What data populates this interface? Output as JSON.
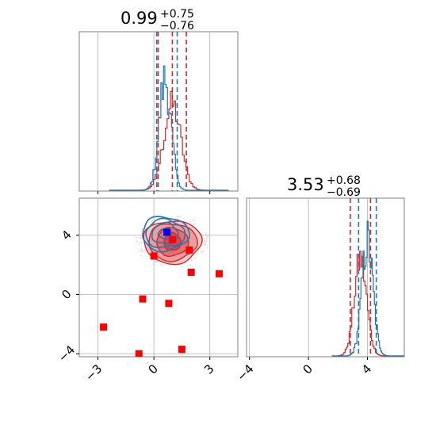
{
  "chart_data": {
    "type": "corner",
    "colors": {
      "blue": "#1f77b4",
      "red": "#d62728",
      "marker_red": "#ff0000",
      "marker_blue": "#0000ff",
      "grid": "#b0b0b0"
    },
    "grid": true,
    "param1": {
      "title_value": "0.99",
      "title_plus": "+0.75",
      "title_minus": "−0.76",
      "range": [
        -4,
        4.5
      ],
      "tick_values": [
        -3,
        0,
        3
      ],
      "tick_labels": [
        "−3",
        "0",
        "3"
      ],
      "blue_quantiles": [
        0.15,
        1.25
      ],
      "red_quantiles": [
        0.23,
        0.99,
        1.74
      ],
      "blue_mean": 0.6,
      "blue_sd": 0.32,
      "red_mean": 0.99,
      "red_sd": 0.46
    },
    "param2": {
      "title_value": "3.53",
      "title_plus": "+0.68",
      "title_minus": "−0.69",
      "range": [
        -4.2,
        6.5
      ],
      "tick_values": [
        -4,
        0,
        4
      ],
      "tick_labels": [
        "−4",
        "0",
        "4"
      ],
      "blue_quantiles": [
        3.4,
        4.6
      ],
      "red_quantiles": [
        2.84,
        4.21
      ],
      "blue_mean": 4.0,
      "blue_sd": 0.38,
      "red_mean": 3.53,
      "red_sd": 0.42
    },
    "red_contour": {
      "center": [
        0.99,
        3.55
      ],
      "radii": [
        [
          0.45,
          0.6
        ],
        [
          0.85,
          0.95
        ],
        [
          1.3,
          1.25
        ],
        [
          1.55,
          1.45
        ]
      ]
    },
    "blue_contour": {
      "center": [
        0.6,
        4.1
      ],
      "radii": [
        [
          0.35,
          0.35
        ],
        [
          0.7,
          0.7
        ],
        [
          1.05,
          0.95
        ],
        [
          1.25,
          1.15
        ]
      ]
    },
    "red_points": [
      [
        -2.7,
        -2.2
      ],
      [
        -0.6,
        -0.3
      ],
      [
        0.8,
        -0.6
      ],
      [
        1.5,
        -3.7
      ],
      [
        -0.8,
        -4.0
      ],
      [
        0.0,
        2.6
      ],
      [
        1.9,
        3.0
      ],
      [
        2.0,
        1.5
      ],
      [
        3.5,
        1.4
      ],
      [
        1.0,
        3.7
      ]
    ],
    "blue_points": [
      [
        0.7,
        4.2
      ]
    ]
  }
}
